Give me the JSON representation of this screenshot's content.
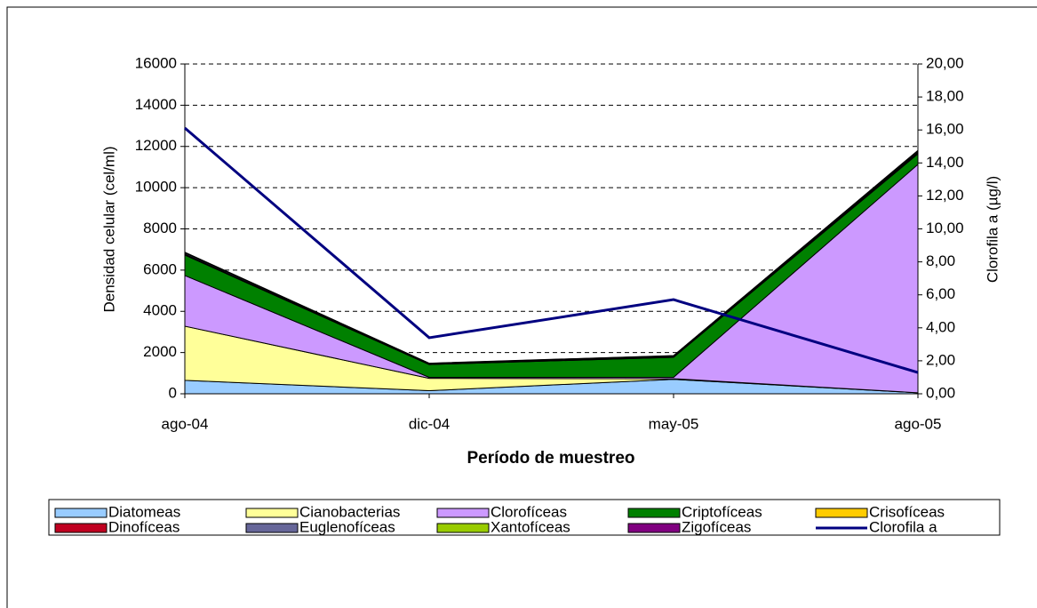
{
  "chart_data": {
    "type": "area",
    "categories": [
      "ago-04",
      "dic-04",
      "may-05",
      "ago-05"
    ],
    "x_label": "Período de muestreo",
    "y_label": "Densidad celular (cel/ml)",
    "y2_label": "Clorofila a  (µg/l)",
    "ylim": [
      0,
      16000
    ],
    "yticks": [
      0,
      2000,
      4000,
      6000,
      8000,
      10000,
      12000,
      14000,
      16000
    ],
    "y2lim": [
      0,
      20
    ],
    "y2ticks": [
      {
        "value": 0,
        "label": "0,00"
      },
      {
        "value": 2,
        "label": "2,00"
      },
      {
        "value": 4,
        "label": "4,00"
      },
      {
        "value": 6,
        "label": "6,00"
      },
      {
        "value": 8,
        "label": "8,00"
      },
      {
        "value": 10,
        "label": "10,00"
      },
      {
        "value": 12,
        "label": "12,00"
      },
      {
        "value": 14,
        "label": "14,00"
      },
      {
        "value": 16,
        "label": "16,00"
      },
      {
        "value": 18,
        "label": "18,00"
      },
      {
        "value": 20,
        "label": "20,00"
      }
    ],
    "grid": true,
    "series": [
      {
        "name": "Diatomeas",
        "color": "#99ccff",
        "values": [
          650,
          150,
          700,
          50
        ]
      },
      {
        "name": "Cianobacterias",
        "color": "#ffff99",
        "values": [
          2630,
          600,
          30,
          0
        ]
      },
      {
        "name": "Clorofíceas",
        "color": "#cc99ff",
        "values": [
          2460,
          50,
          70,
          11080
        ]
      },
      {
        "name": "Criptofíceas",
        "color": "#008000",
        "values": [
          990,
          620,
          970,
          510
        ]
      },
      {
        "name": "Crisofíceas",
        "color": "#ffcc00",
        "values": [
          20,
          10,
          10,
          20
        ]
      },
      {
        "name": "Dinofíceas",
        "color": "#c00020",
        "values": [
          30,
          10,
          20,
          30
        ]
      },
      {
        "name": "Euglenofíceas",
        "color": "#666699",
        "values": [
          60,
          30,
          40,
          40
        ]
      },
      {
        "name": "Xantofíceas",
        "color": "#99cc00",
        "values": [
          10,
          5,
          5,
          60
        ]
      },
      {
        "name": "Zigofíceas",
        "color": "#800080",
        "values": [
          20,
          10,
          10,
          20
        ]
      },
      {
        "name": "Clorofila a",
        "color": "#000080",
        "type": "line",
        "axis": "y2",
        "values": [
          16.12,
          3.4,
          5.71,
          1.29
        ]
      }
    ]
  }
}
